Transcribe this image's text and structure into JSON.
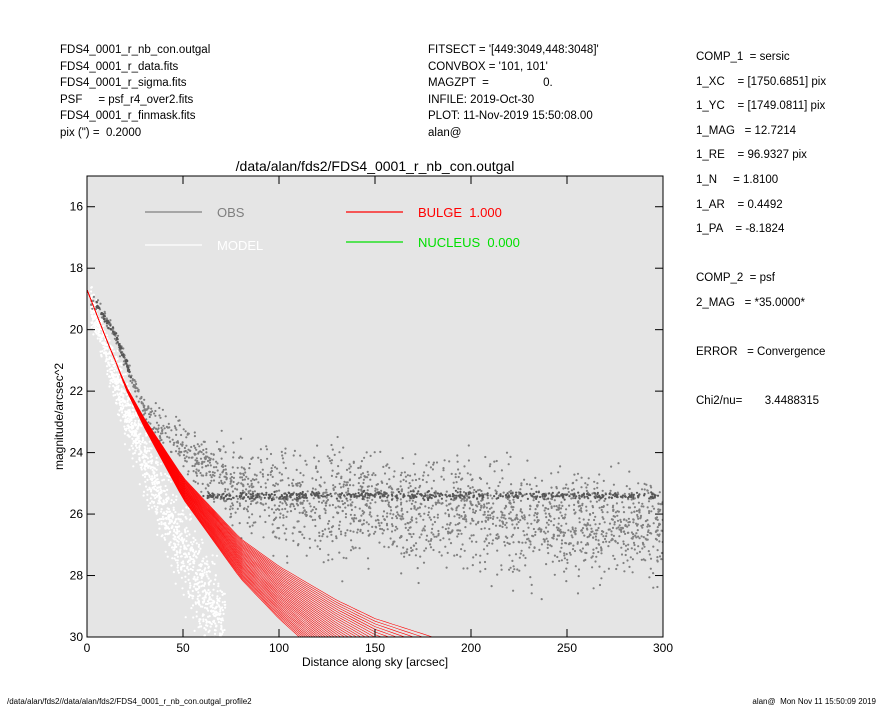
{
  "header_left": [
    "FDS4_0001_r_nb_con.outgal",
    "FDS4_0001_r_data.fits",
    "FDS4_0001_r_sigma.fits",
    "PSF     = psf_r4_over2.fits",
    "FDS4_0001_r_finmask.fits",
    "pix (\") =  0.2000"
  ],
  "header_center": [
    "FITSECT = '[449:3049,448:3048]'",
    "CONVBOX = '101, 101'",
    "MAGZPT  =                 0.",
    "INFILE: 2019-Oct-30",
    "PLOT: 11-Nov-2019 15:50:08.00",
    "alan@"
  ],
  "params": [
    "COMP_1  = sersic",
    "1_XC    = [1750.6851] pix",
    "1_YC    = [1749.0811] pix",
    "1_MAG   = 12.7214",
    "1_RE    = 96.9327 pix",
    "1_N     = 1.8100",
    "1_AR    = 0.4492",
    "1_PA    = -8.1824",
    "",
    "COMP_2  = psf",
    "2_MAG   = *35.0000*",
    "",
    "ERROR   = Convergence",
    "",
    "Chi2/nu=       3.4488315"
  ],
  "footer": {
    "left": "/data/alan/fds2//data/alan/fds2/FDS4_0001_r_nb_con.outgal_profile2",
    "right": "alan@  Mon Nov 11 15:50:09 2019"
  },
  "colors": {
    "background": "#e5e5e5",
    "obs": "#808080",
    "model": "#ffffff",
    "bulge": "#ff0000",
    "nucleus": "#00e000"
  },
  "chart_data": {
    "type": "scatter",
    "title": "/data/alan/fds2/FDS4_0001_r_nb_con.outgal",
    "xlabel": "Distance along sky [arcsec]",
    "ylabel": "magnitude/arcsec^2",
    "xlim": [
      0,
      300
    ],
    "ylim": [
      30,
      15
    ],
    "x_ticks": [
      0,
      50,
      100,
      150,
      200,
      250,
      300
    ],
    "y_ticks": [
      16,
      18,
      20,
      22,
      24,
      26,
      28,
      30
    ],
    "legend": [
      {
        "name": "OBS",
        "color": "#808080"
      },
      {
        "name": "MODEL",
        "color": "#ffffff"
      },
      {
        "name": "BULGE  1.000",
        "color": "#ff0000"
      },
      {
        "name": "NUCLEUS  0.000",
        "color": "#00e000"
      }
    ],
    "series": [
      {
        "name": "OBS",
        "points": [
          [
            5,
            19.2
          ],
          [
            10,
            19.7
          ],
          [
            15,
            20.2
          ],
          [
            20,
            21.0
          ],
          [
            25,
            21.9
          ],
          [
            30,
            22.6
          ],
          [
            40,
            23.3
          ],
          [
            50,
            23.8
          ],
          [
            60,
            24.3
          ],
          [
            70,
            24.8
          ],
          [
            80,
            25.2
          ],
          [
            100,
            25.5
          ],
          [
            150,
            25.8
          ],
          [
            200,
            26.0
          ],
          [
            250,
            26.3
          ],
          [
            300,
            26.5
          ]
        ]
      },
      {
        "name": "MODEL",
        "points": [
          [
            2,
            19.2
          ],
          [
            10,
            20.6
          ],
          [
            20,
            22.5
          ],
          [
            30,
            24.2
          ],
          [
            40,
            25.8
          ],
          [
            50,
            27.2
          ],
          [
            60,
            28.6
          ],
          [
            70,
            29.8
          ]
        ]
      },
      {
        "name": "BULGE  1.000",
        "points": [
          [
            0,
            18.7
          ],
          [
            10,
            20.3
          ],
          [
            20,
            21.8
          ],
          [
            30,
            22.9
          ],
          [
            50,
            24.8
          ],
          [
            80,
            26.8
          ],
          [
            100,
            27.7
          ],
          [
            130,
            28.8
          ],
          [
            150,
            29.4
          ],
          [
            180,
            30.0
          ]
        ]
      },
      {
        "name": "NUCLEUS  0.000",
        "points": []
      }
    ]
  }
}
